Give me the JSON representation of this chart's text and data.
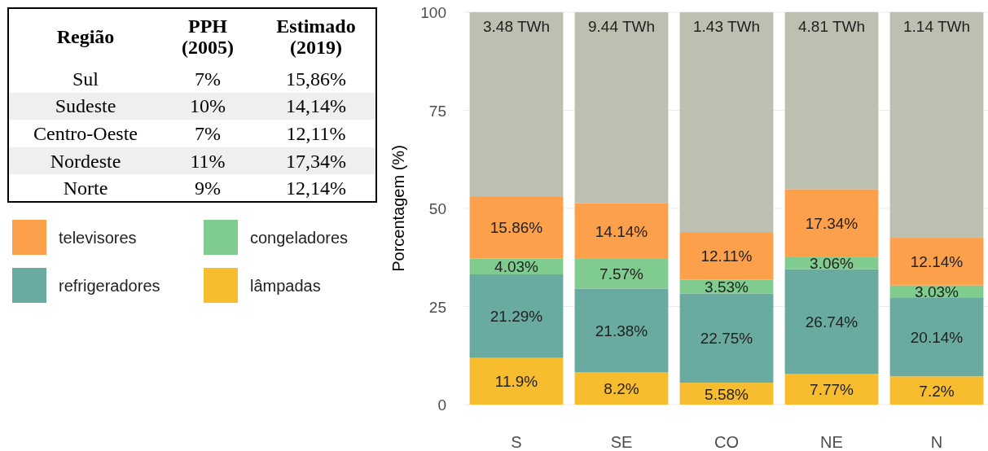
{
  "chart_data": [
    {
      "type": "other",
      "annotations": [
        "Região",
        "PPH (2005)",
        "Estimado (2019)",
        "Sul",
        "7%",
        "15,86%",
        "Sudeste",
        "10%",
        "14,14%",
        "Centro-Oeste",
        "7%",
        "12,11%",
        "Nordeste",
        "11%",
        "17,34%",
        "Norte",
        "9%",
        "12,14%"
      ]
    },
    {
      "type": "bar",
      "stacked": true,
      "categories": [
        "S",
        "SE",
        "CO",
        "NE",
        "N"
      ],
      "ylabel": "Porcentagem (%)",
      "ylim": [
        0,
        100
      ],
      "yticks": [
        0,
        25,
        50,
        75,
        100
      ],
      "grid": "y",
      "legend": "left",
      "series": [
        {
          "name": "lâmpadas",
          "color": "#f8bd2e",
          "values": [
            11.9,
            8.2,
            5.58,
            7.77,
            7.2
          ],
          "value_labels": [
            "11.9%",
            "8.2%",
            "5.58%",
            "7.77%",
            "7.2%"
          ]
        },
        {
          "name": "refrigeradores",
          "color": "#69aba0",
          "values": [
            21.29,
            21.38,
            22.75,
            26.74,
            20.14
          ],
          "value_labels": [
            "21.29%",
            "21.38%",
            "22.75%",
            "26.74%",
            "20.14%"
          ]
        },
        {
          "name": "congeladores",
          "color": "#7fcc8e",
          "values": [
            4.03,
            7.57,
            3.53,
            3.06,
            3.03
          ],
          "value_labels": [
            "4.03%",
            "7.57%",
            "3.53%",
            "3.06%",
            "3.03%"
          ]
        },
        {
          "name": "televisores",
          "color": "#fca04c",
          "values": [
            15.86,
            14.14,
            12.11,
            17.34,
            12.14
          ],
          "value_labels": [
            "15.86%",
            "14.14%",
            "12.11%",
            "17.34%",
            "12.14%"
          ]
        },
        {
          "color": "#bdbfb0",
          "values": [
            46.9,
            48.7,
            56.0,
            45.1,
            57.5
          ]
        }
      ],
      "annotations": [
        {
          "text": "3.48 TWh",
          "x": "S",
          "y": 100
        },
        {
          "text": "9.44 TWh",
          "x": "SE",
          "y": 100
        },
        {
          "text": "1.43 TWh",
          "x": "CO",
          "y": 100
        },
        {
          "text": "4.81 TWh",
          "x": "NE",
          "y": 100
        },
        {
          "text": "1.14 TWh",
          "x": "N",
          "y": 100
        }
      ]
    }
  ]
}
